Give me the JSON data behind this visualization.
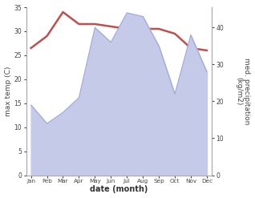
{
  "months": [
    "Jan",
    "Feb",
    "Mar",
    "Apr",
    "May",
    "Jun",
    "Jul",
    "Aug",
    "Sep",
    "Oct",
    "Nov",
    "Dec"
  ],
  "month_indices": [
    0,
    1,
    2,
    3,
    4,
    5,
    6,
    7,
    8,
    9,
    10,
    11
  ],
  "max_temp": [
    26.5,
    29.0,
    34.0,
    31.5,
    31.5,
    31.0,
    30.5,
    30.5,
    30.5,
    29.5,
    26.5,
    26.0
  ],
  "precipitation": [
    19,
    14,
    17,
    21,
    40,
    36,
    44,
    43,
    35,
    22,
    38,
    28
  ],
  "temp_color": "#c0504d",
  "precip_fill_color": "#c5cae9",
  "precip_edge_color": "#9fa8da",
  "temp_ylim": [
    0,
    35
  ],
  "precip_ylim": [
    0,
    45.5
  ],
  "xlabel": "date (month)",
  "ylabel_left": "max temp (C)",
  "ylabel_right": "med. precipitation\n(kg/m2)",
  "background_color": "#ffffff",
  "temp_linewidth": 1.8
}
